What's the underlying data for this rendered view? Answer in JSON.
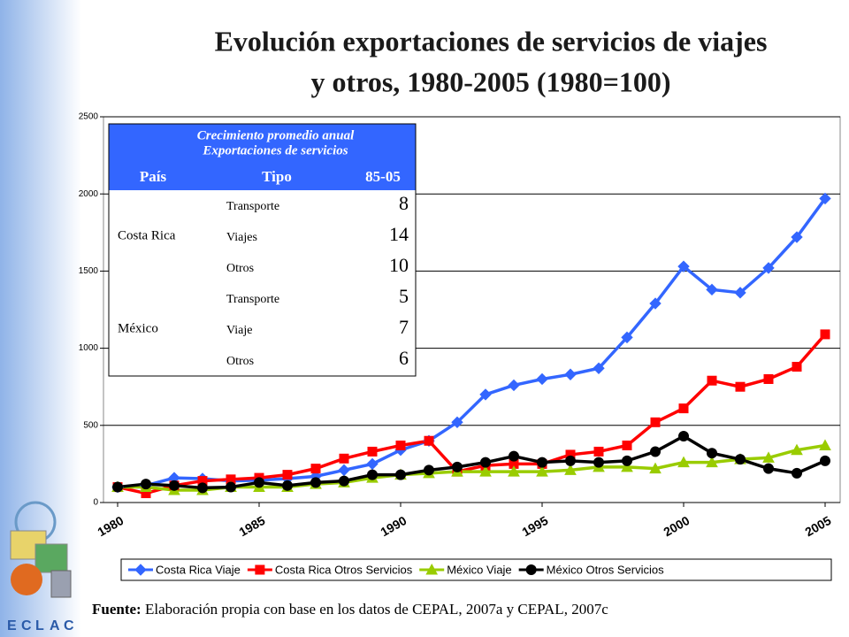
{
  "chart_data": {
    "type": "line",
    "title": [
      "Evolución exportaciones de servicios de viajes",
      "y otros, 1980-2005 (1980=100)"
    ],
    "x": [
      1980,
      1981,
      1982,
      1983,
      1984,
      1985,
      1986,
      1987,
      1988,
      1989,
      1990,
      1991,
      1992,
      1993,
      1994,
      1995,
      1996,
      1997,
      1998,
      1999,
      2000,
      2001,
      2002,
      2003,
      2004,
      2005
    ],
    "xlim": [
      1980,
      2005
    ],
    "xticks": [
      1980,
      1985,
      1990,
      1995,
      2000,
      2005
    ],
    "ylim": [
      0,
      2500
    ],
    "yticks": [
      0,
      500,
      1000,
      1500,
      2000,
      2500
    ],
    "grid": true,
    "legend": "bottom",
    "series": [
      {
        "name": "Costa Rica Viaje",
        "color": "#3366ff",
        "marker": "diamond",
        "values": [
          100,
          110,
          160,
          155,
          140,
          145,
          155,
          170,
          210,
          250,
          340,
          400,
          520,
          700,
          760,
          800,
          830,
          870,
          1070,
          1290,
          1530,
          1380,
          1360,
          1520,
          1720,
          1970
        ]
      },
      {
        "name": "Costa Rica Otros Servicios",
        "color": "#ff0000",
        "marker": "square",
        "values": [
          100,
          60,
          110,
          140,
          150,
          160,
          180,
          220,
          285,
          330,
          370,
          400,
          200,
          240,
          250,
          250,
          310,
          330,
          370,
          520,
          610,
          790,
          750,
          800,
          880,
          1090
        ]
      },
      {
        "name": "México Viaje",
        "color": "#99cc00",
        "marker": "triangle",
        "values": [
          100,
          100,
          80,
          80,
          100,
          100,
          100,
          120,
          130,
          160,
          180,
          190,
          200,
          200,
          200,
          200,
          210,
          230,
          230,
          220,
          260,
          260,
          280,
          290,
          340,
          370
        ]
      },
      {
        "name": "México Otros Servicios",
        "color": "#000000",
        "marker": "circle",
        "values": [
          100,
          120,
          110,
          95,
          100,
          130,
          110,
          130,
          140,
          180,
          180,
          210,
          230,
          260,
          300,
          260,
          270,
          260,
          270,
          330,
          430,
          320,
          280,
          220,
          190,
          270
        ]
      }
    ]
  },
  "table": {
    "title": [
      "Crecimiento promedio anual",
      "Exportaciones de servicios"
    ],
    "columns": [
      "País",
      "Tipo",
      "85-05"
    ],
    "groups": [
      {
        "country": "Costa Rica",
        "rows": [
          [
            "Transporte",
            "8"
          ],
          [
            "Viajes",
            "14"
          ],
          [
            "Otros",
            "10"
          ]
        ]
      },
      {
        "country": "México",
        "rows": [
          [
            "Transporte",
            "5"
          ],
          [
            "Viaje",
            "7"
          ],
          [
            "Otros",
            "6"
          ]
        ]
      }
    ]
  },
  "source": {
    "label": "Fuente:",
    "text": "Elaboración propia con base en los datos de CEPAL, 2007a y CEPAL, 2007c"
  },
  "logo_text": [
    "E",
    "C",
    "L",
    "A",
    "C"
  ]
}
